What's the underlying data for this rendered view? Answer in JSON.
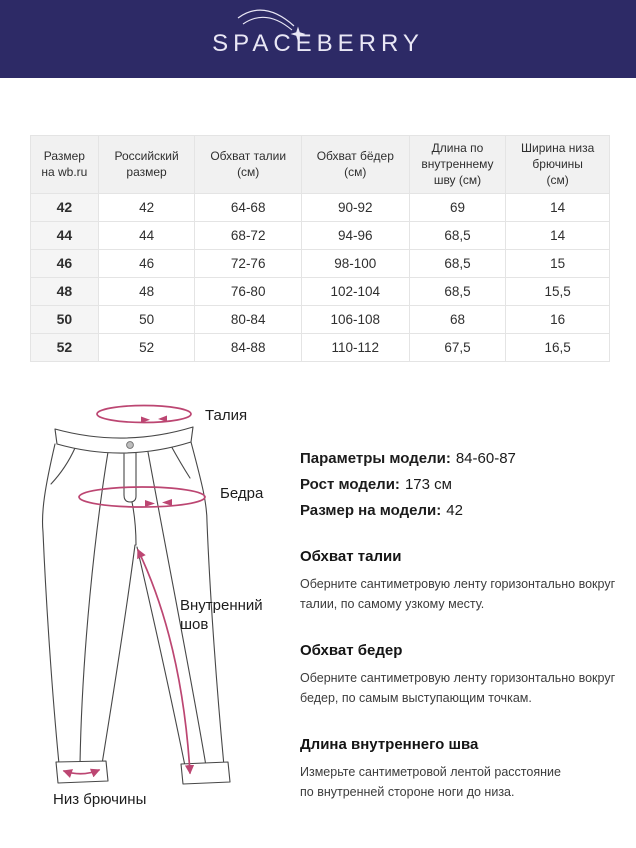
{
  "brand": {
    "logo_text": "SPACEBERRY",
    "header_bg": "#2d2a66",
    "logo_color": "#e9e7f5"
  },
  "size_table": {
    "columns": [
      [
        "Размер",
        "на wb.ru"
      ],
      [
        "Российский",
        "размер"
      ],
      [
        "Обхват талии",
        "(см)"
      ],
      [
        "Обхват бёдер",
        "(см)"
      ],
      [
        "Длина по",
        "внутреннему",
        "шву (см)"
      ],
      [
        "Ширина низа",
        "брючины",
        "(см)"
      ]
    ],
    "rows": [
      [
        "42",
        "42",
        "64-68",
        "90-92",
        "69",
        "14"
      ],
      [
        "44",
        "44",
        "68-72",
        "94-96",
        "68,5",
        "14"
      ],
      [
        "46",
        "46",
        "72-76",
        "98-100",
        "68,5",
        "15"
      ],
      [
        "48",
        "48",
        "76-80",
        "102-104",
        "68,5",
        "15,5"
      ],
      [
        "50",
        "50",
        "80-84",
        "106-108",
        "68",
        "16"
      ],
      [
        "52",
        "52",
        "84-88",
        "110-112",
        "67,5",
        "16,5"
      ]
    ]
  },
  "diagram": {
    "accent_color": "#bc4672",
    "waist_label": "Талия",
    "hips_label": "Бедра",
    "inseam_label": "Внутренний шов",
    "hem_label": "Низ брючины"
  },
  "model_info": {
    "lines": [
      {
        "label": "Параметры модели:",
        "value": "84-60-87"
      },
      {
        "label": "Рост модели:",
        "value": "173 см"
      },
      {
        "label": "Размер на модели:",
        "value": "42"
      }
    ]
  },
  "measure_guide": {
    "sections": [
      {
        "title": "Обхват талии",
        "body": [
          "Оберните сантиметровую ленту горизонтально вокруг",
          "талии, по самому узкому месту."
        ]
      },
      {
        "title": "Обхват бедер",
        "body": [
          "Оберните сантиметровую ленту горизонтально вокруг",
          "бедер, по самым выступающим точкам."
        ]
      },
      {
        "title": "Длина внутреннего шва",
        "body": [
          "Измерьте сантиметровой лентой расстояние",
          "по внутренней стороне ноги до низа."
        ]
      }
    ]
  }
}
